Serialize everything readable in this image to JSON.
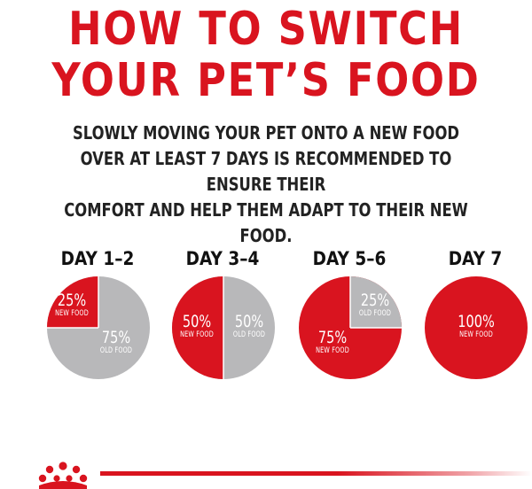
{
  "title": {
    "line1": "HOW TO SWITCH",
    "line2": "YOUR PET’S FOOD"
  },
  "subtitle": {
    "line1": "SLOWLY MOVING YOUR PET ONTO A NEW FOOD",
    "line2": "OVER AT LEAST 7 DAYS IS RECOMMENDED TO ENSURE THEIR",
    "line3": "COMFORT AND HELP THEM ADAPT TO THEIR NEW FOOD."
  },
  "colors": {
    "brand_red": "#d9141f",
    "old_food_gray": "#b8b8ba"
  },
  "stages": [
    {
      "day": "DAY 1–2",
      "new_pct": "25%",
      "new_label": "NEW FOOD",
      "old_pct": "75%",
      "old_label": "OLD FOOD",
      "new_fraction": 0.25
    },
    {
      "day": "DAY 3–4",
      "new_pct": "50%",
      "new_label": "NEW FOOD",
      "old_pct": "50%",
      "old_label": "OLD FOOD",
      "new_fraction": 0.5
    },
    {
      "day": "DAY 5–6",
      "new_pct": "75%",
      "new_label": "NEW FOOD",
      "old_pct": "25%",
      "old_label": "OLD FOOD",
      "new_fraction": 0.75
    },
    {
      "day": "DAY 7",
      "new_pct": "100%",
      "new_label": "NEW FOOD",
      "new_fraction": 1.0
    }
  ],
  "logo": {
    "icon": "royal-crown-logo-icon"
  }
}
